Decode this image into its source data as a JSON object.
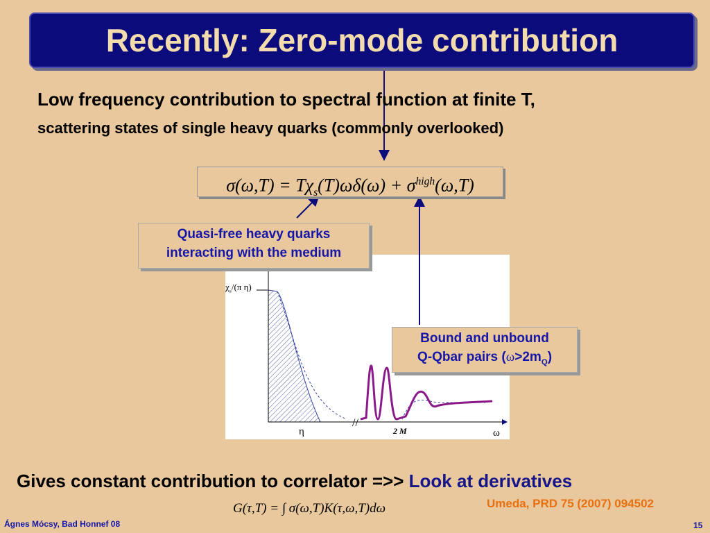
{
  "title": "Recently: Zero-mode contribution",
  "intro": {
    "line1": "Low frequency contribution to spectral function at finite T,",
    "line2": "scattering states of single heavy quarks (commonly overlooked)"
  },
  "formula_spectral": [
    "σ(ω,T) = Tχ",
    "s",
    "(T)ωδ(ω) + σ",
    "high",
    "(ω,T)"
  ],
  "callout_quasi_free": [
    "Quasi-free heavy quarks",
    "interacting with the medium"
  ],
  "callout_bound": {
    "line1": "Bound and unbound",
    "line2": [
      "Q-Qbar pairs (",
      "ω",
      ">2m",
      "Q",
      ")"
    ]
  },
  "plot_labels": {
    "peak": [
      "χ",
      "s",
      "/(π η)"
    ],
    "eta": "η",
    "two_m": "2 M",
    "omega": "ω"
  },
  "conclusion": {
    "text": "Gives constant contribution to correlator =>>",
    "link": "Look at derivatives"
  },
  "formula_correlator": "G(τ,T) = ∫ σ(ω,T)K(τ,ω,T)dω",
  "reference": "Umeda, PRD 75 (2007) 094502",
  "footer": {
    "author": "Ágnes Mócsy, Bad Honnef 08",
    "page": "15"
  }
}
